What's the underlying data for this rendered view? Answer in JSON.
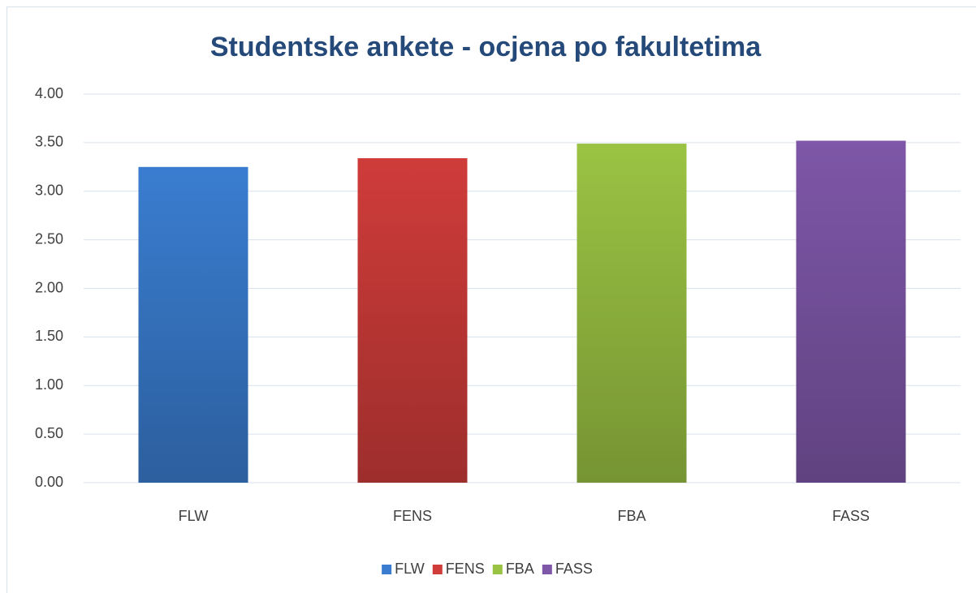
{
  "chart_data": {
    "type": "bar",
    "title": "Studentske ankete - ocjena po fakultetima",
    "categories": [
      "FLW",
      "FENS",
      "FBA",
      "FASS"
    ],
    "values": [
      3.25,
      3.34,
      3.49,
      3.52
    ],
    "colors": [
      "#3a7dd0",
      "#cf3c3a",
      "#9bc343",
      "#7e57a8"
    ],
    "ylim": [
      0,
      4
    ],
    "yticks": [
      {
        "value": 0,
        "label": "0.00"
      },
      {
        "value": 0.5,
        "label": "0.50"
      },
      {
        "value": 1,
        "label": "1.00"
      },
      {
        "value": 1.5,
        "label": "1.50"
      },
      {
        "value": 2,
        "label": "2.00"
      },
      {
        "value": 2.5,
        "label": "2.50"
      },
      {
        "value": 3,
        "label": "3.00"
      },
      {
        "value": 3.5,
        "label": "3.50"
      },
      {
        "value": 4,
        "label": "4.00"
      }
    ],
    "grid": true,
    "legend": "bottom"
  }
}
